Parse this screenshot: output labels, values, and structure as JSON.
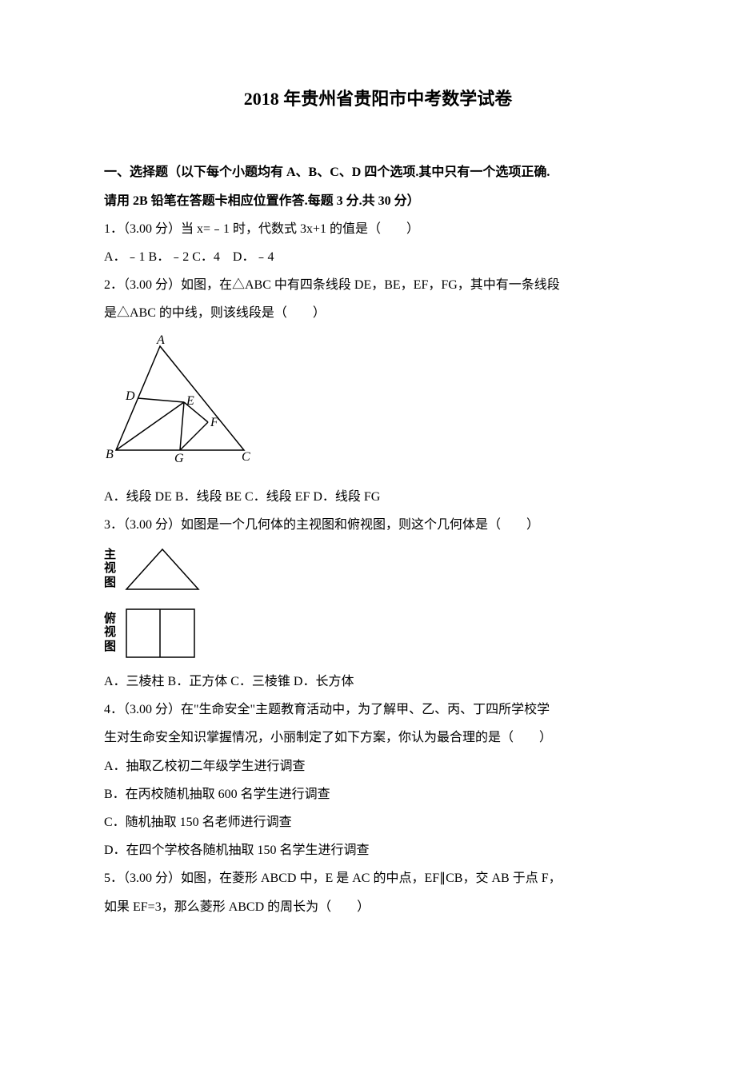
{
  "title": "2018 年贵州省贵阳市中考数学试卷",
  "section_header_line1": "一、选择题（以下每个小题均有 A、B、C、D 四个选项.其中只有一个选项正确.",
  "section_header_line2": "请用 2B 铅笔在答题卡相应位置作答.每题 3 分.共 30 分）",
  "q1": {
    "text": "1．（3.00 分）当 x=﹣1 时，代数式 3x+1 的值是（　　）",
    "options": "A．﹣1  B．﹣2  C．4　D．﹣4"
  },
  "q2": {
    "text_line1": "2．（3.00 分）如图，在△ABC 中有四条线段 DE，BE，EF，FG，其中有一条线段",
    "text_line2": "是△ABC 的中线，则该线段是（　　）",
    "options": "A．线段 DE  B．线段 BE  C．线段 EF  D．线段 FG",
    "labels": {
      "A": "A",
      "B": "B",
      "C": "C",
      "D": "D",
      "E": "E",
      "F": "F",
      "G": "G"
    }
  },
  "q3": {
    "text": "3．（3.00 分）如图是一个几何体的主视图和俯视图，则这个几何体是（　　）",
    "main_view_label": "主视图",
    "top_view_label": "俯视图",
    "options": "A．三棱柱  B．正方体  C．三棱锥  D．长方体"
  },
  "q4": {
    "text_line1": "4．（3.00 分）在\"生命安全\"主题教育活动中，为了解甲、乙、丙、丁四所学校学",
    "text_line2": "生对生命安全知识掌握情况，小丽制定了如下方案，你认为最合理的是（　　）",
    "optA": "A．抽取乙校初二年级学生进行调查",
    "optB": "B．在丙校随机抽取 600 名学生进行调查",
    "optC": "C．随机抽取 150 名老师进行调查",
    "optD": "D．在四个学校各随机抽取 150 名学生进行调查"
  },
  "q5": {
    "text_line1": "5．（3.00 分）如图，在菱形 ABCD 中，E 是 AC 的中点，EF∥CB，交 AB 于点 F，",
    "text_line2": "如果 EF=3，那么菱形 ABCD 的周长为（　　）"
  },
  "colors": {
    "text": "#000000",
    "background": "#ffffff",
    "stroke": "#000000"
  },
  "svg_styles": {
    "stroke_width": 1.5,
    "font_family": "Times New Roman, serif",
    "font_style": "italic",
    "label_font_size": 16
  }
}
